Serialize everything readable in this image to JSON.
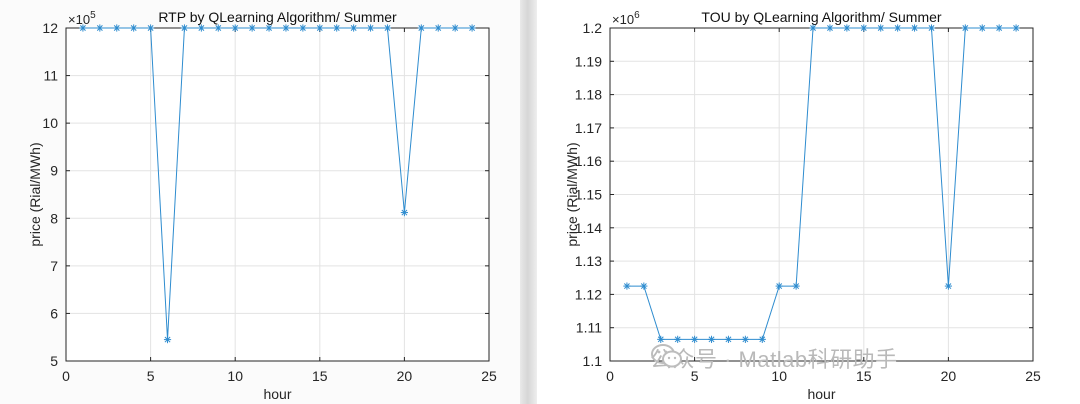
{
  "chart_data": [
    {
      "type": "line",
      "title": "RTP by QLearning Algorithm/ Summer",
      "xlabel": "hour",
      "ylabel": "price (Rial/MWh)",
      "exponent_label": "×10^5",
      "exponent_base": "×10",
      "exponent_power": "5",
      "xlim": [
        0,
        25
      ],
      "ylim": [
        5,
        12
      ],
      "xticks": [
        0,
        5,
        10,
        15,
        20,
        25
      ],
      "yticks": [
        5,
        6,
        7,
        8,
        9,
        10,
        11,
        12
      ],
      "ytick_labels": [
        "5",
        "6",
        "7",
        "8",
        "9",
        "10",
        "11",
        "12"
      ],
      "grid": true,
      "marker": "asterisk",
      "color": "#2e8ccf",
      "x": [
        1,
        2,
        3,
        4,
        5,
        6,
        7,
        8,
        9,
        10,
        11,
        12,
        13,
        14,
        15,
        16,
        17,
        18,
        19,
        20,
        21,
        22,
        23,
        24
      ],
      "y": [
        12,
        12,
        12,
        12,
        12,
        5.45,
        12,
        12,
        12,
        12,
        12,
        12,
        12,
        12,
        12,
        12,
        12,
        12,
        12,
        8.12,
        12,
        12,
        12,
        12
      ]
    },
    {
      "type": "line",
      "title": "TOU by QLearning Algorithm/ Summer",
      "xlabel": "hour",
      "ylabel": "price (Rial/MWh)",
      "exponent_label": "×10^6",
      "exponent_base": "×10",
      "exponent_power": "6",
      "xlim": [
        0,
        25
      ],
      "ylim": [
        1.1,
        1.2
      ],
      "xticks": [
        0,
        5,
        10,
        15,
        20,
        25
      ],
      "yticks": [
        1.1,
        1.11,
        1.12,
        1.13,
        1.14,
        1.15,
        1.16,
        1.17,
        1.18,
        1.19,
        1.2
      ],
      "ytick_labels": [
        "1.1",
        "1.11",
        "1.12",
        "1.13",
        "1.14",
        "1.15",
        "1.16",
        "1.17",
        "1.18",
        "1.19",
        "1.2"
      ],
      "grid": true,
      "marker": "asterisk",
      "color": "#2e8ccf",
      "x": [
        1,
        2,
        3,
        4,
        5,
        6,
        7,
        8,
        9,
        10,
        11,
        12,
        13,
        14,
        15,
        16,
        17,
        18,
        19,
        20,
        21,
        22,
        23,
        24
      ],
      "y": [
        1.1225,
        1.1225,
        1.1065,
        1.1065,
        1.1065,
        1.1065,
        1.1065,
        1.1065,
        1.1065,
        1.1225,
        1.1225,
        1.2,
        1.2,
        1.2,
        1.2,
        1.2,
        1.2,
        1.2,
        1.2,
        1.1225,
        1.2,
        1.2,
        1.2,
        1.2
      ]
    }
  ],
  "watermark": {
    "text": "公众号 · Matlab科研助手",
    "icon": "wechat-icon"
  }
}
